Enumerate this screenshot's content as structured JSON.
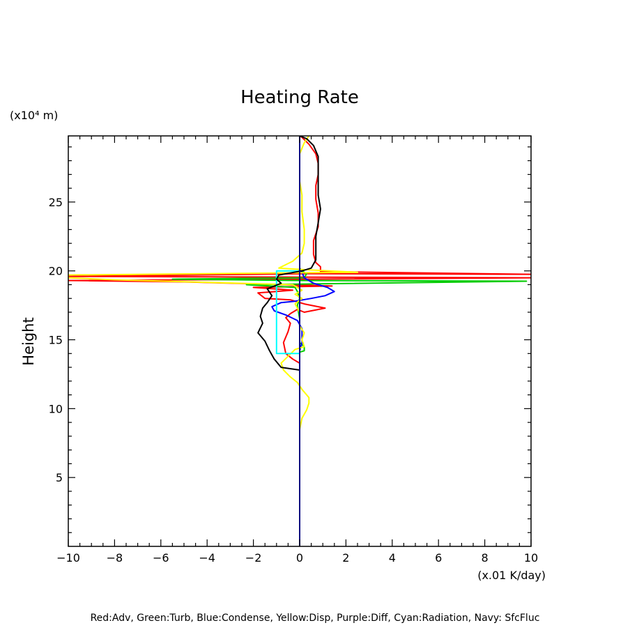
{
  "chart_data": {
    "type": "line",
    "title": "Heating Rate",
    "ylabel": "Height",
    "y_units": "(x10⁴ m)",
    "x_units": "(x.01 K/day)",
    "xlim": [
      -10,
      10
    ],
    "ylim": [
      0,
      29.8
    ],
    "x_ticks": [
      "−10",
      "−8",
      "−6",
      "−4",
      "−2",
      "0",
      "2",
      "4",
      "6",
      "8",
      "10"
    ],
    "y_ticks": [
      "5",
      "10",
      "15",
      "20",
      "25"
    ],
    "legend": "Red:Adv, Green:Turb, Blue:Condense, Yellow:Disp, Purple:Diff, Cyan:Radiation, Navy: SfcFluc",
    "grid": false,
    "series": [
      {
        "name": "Red:Adv",
        "color": "#ff0000",
        "points": [
          [
            0,
            12.8
          ],
          [
            0,
            13.3
          ],
          [
            -0.3,
            13.6
          ],
          [
            -0.6,
            14.0
          ],
          [
            -0.7,
            14.8
          ],
          [
            -0.5,
            15.6
          ],
          [
            -0.4,
            16.2
          ],
          [
            -0.6,
            16.6
          ],
          [
            -0.4,
            16.9
          ],
          [
            -0.1,
            17.2
          ],
          [
            0.2,
            17.0
          ],
          [
            1.1,
            17.3
          ],
          [
            0.2,
            17.6
          ],
          [
            -0.4,
            17.9
          ],
          [
            -1.5,
            18.0
          ],
          [
            -1.8,
            18.4
          ],
          [
            -0.3,
            18.6
          ],
          [
            -2.0,
            18.8
          ],
          [
            1.4,
            18.9
          ],
          [
            -5.0,
            19.2
          ],
          [
            -10,
            19.3
          ],
          [
            10,
            19.5
          ],
          [
            -10,
            19.6
          ],
          [
            0.4,
            19.8
          ],
          [
            10,
            19.75
          ],
          [
            0.9,
            19.95
          ],
          [
            0.9,
            20.3
          ],
          [
            0.7,
            20.6
          ],
          [
            0.6,
            21.2
          ],
          [
            0.6,
            22.2
          ],
          [
            0.8,
            23.2
          ],
          [
            0.8,
            24.2
          ],
          [
            0.7,
            25.2
          ],
          [
            0.7,
            26.2
          ],
          [
            0.8,
            27.0
          ],
          [
            0.8,
            27.8
          ],
          [
            0.7,
            28.5
          ],
          [
            0.4,
            29.2
          ],
          [
            0.1,
            29.7
          ],
          [
            0,
            29.8
          ]
        ]
      },
      {
        "name": "Green:Turb",
        "color": "#00cc00",
        "points": [
          [
            0,
            14.1
          ],
          [
            0.2,
            14.2
          ],
          [
            0.2,
            14.5
          ],
          [
            0,
            14.8
          ],
          [
            0,
            15.6
          ],
          [
            0,
            16.5
          ],
          [
            -0.1,
            17.5
          ],
          [
            0,
            18.0
          ],
          [
            -0.1,
            18.5
          ],
          [
            -0.2,
            18.8
          ],
          [
            -2.3,
            19.0
          ],
          [
            0.3,
            19.05
          ],
          [
            9.8,
            19.25
          ],
          [
            -0.1,
            19.3
          ],
          [
            -5.5,
            19.4
          ],
          [
            0.2,
            19.5
          ],
          [
            0.3,
            19.8
          ],
          [
            0.1,
            20.0
          ],
          [
            0,
            20.2
          ]
        ]
      },
      {
        "name": "Blue:Condense",
        "color": "#0000ff",
        "points": [
          [
            0,
            14.2
          ],
          [
            0.1,
            14.8
          ],
          [
            0.1,
            15.8
          ],
          [
            -0.1,
            16.4
          ],
          [
            -0.6,
            16.8
          ],
          [
            -1.1,
            17.1
          ],
          [
            -1.2,
            17.4
          ],
          [
            -0.8,
            17.7
          ],
          [
            -0.2,
            17.8
          ],
          [
            0.5,
            18.0
          ],
          [
            1.1,
            18.2
          ],
          [
            1.5,
            18.5
          ],
          [
            1.2,
            18.8
          ],
          [
            0.6,
            19.1
          ],
          [
            0.2,
            19.5
          ],
          [
            0.1,
            19.9
          ],
          [
            0,
            20.2
          ]
        ]
      },
      {
        "name": "Yellow:Disp",
        "color": "#ffff00",
        "points": [
          [
            0,
            8.5
          ],
          [
            0.1,
            9.3
          ],
          [
            0.3,
            9.9
          ],
          [
            0.4,
            10.4
          ],
          [
            0.4,
            10.8
          ],
          [
            0.1,
            11.4
          ],
          [
            -0.1,
            11.9
          ],
          [
            -0.4,
            12.3
          ],
          [
            -0.7,
            12.8
          ],
          [
            -0.8,
            13.3
          ],
          [
            -0.5,
            13.8
          ],
          [
            -0.2,
            14.3
          ],
          [
            0.2,
            14.5
          ],
          [
            0.1,
            15.0
          ],
          [
            0.2,
            15.5
          ],
          [
            0,
            16.0
          ],
          [
            0,
            17.0
          ],
          [
            -0.2,
            17.6
          ],
          [
            0.1,
            18.0
          ],
          [
            -0.2,
            18.3
          ],
          [
            0.1,
            18.6
          ],
          [
            -0.3,
            19.0
          ],
          [
            -8.0,
            19.35
          ],
          [
            -10,
            19.5
          ],
          [
            -10,
            19.7
          ],
          [
            -1.0,
            19.85
          ],
          [
            2.5,
            19.9
          ],
          [
            0.1,
            20.1
          ],
          [
            -0.9,
            20.2
          ],
          [
            -0.3,
            20.7
          ],
          [
            0.1,
            21.3
          ],
          [
            0.2,
            22.0
          ],
          [
            0.2,
            23.0
          ],
          [
            0.1,
            24.3
          ],
          [
            0.1,
            25.5
          ],
          [
            0,
            26.5
          ],
          [
            0,
            27.5
          ],
          [
            0,
            28.5
          ],
          [
            0.2,
            29.3
          ],
          [
            0.4,
            29.8
          ]
        ]
      },
      {
        "name": "Cyan:Radiation",
        "color": "#00ffff",
        "points": [
          [
            0,
            14.0
          ],
          [
            -1.0,
            14.0
          ],
          [
            -1.0,
            17.0
          ],
          [
            -1.0,
            20.0
          ],
          [
            0,
            20.0
          ]
        ]
      },
      {
        "name": "Black",
        "color": "#000000",
        "points": [
          [
            0,
            12.8
          ],
          [
            -0.8,
            13.0
          ],
          [
            -1.1,
            13.6
          ],
          [
            -1.3,
            14.2
          ],
          [
            -1.5,
            14.9
          ],
          [
            -1.8,
            15.5
          ],
          [
            -1.6,
            16.2
          ],
          [
            -1.7,
            16.7
          ],
          [
            -1.6,
            17.3
          ],
          [
            -1.4,
            17.7
          ],
          [
            -1.2,
            18.2
          ],
          [
            -1.4,
            18.7
          ],
          [
            -0.8,
            19.1
          ],
          [
            -1.0,
            19.4
          ],
          [
            -0.9,
            19.7
          ],
          [
            0.1,
            20.0
          ],
          [
            0.5,
            20.2
          ],
          [
            0.7,
            20.8
          ],
          [
            0.7,
            21.6
          ],
          [
            0.7,
            22.5
          ],
          [
            0.8,
            23.5
          ],
          [
            0.9,
            24.5
          ],
          [
            0.8,
            25.5
          ],
          [
            0.8,
            26.5
          ],
          [
            0.8,
            27.5
          ],
          [
            0.8,
            28.3
          ],
          [
            0.6,
            29.1
          ],
          [
            0.3,
            29.6
          ],
          [
            0,
            29.8
          ]
        ]
      },
      {
        "name": "Navy: SfcFluc",
        "color": "#000080",
        "points": [
          [
            0,
            0
          ],
          [
            0,
            29.8
          ]
        ]
      }
    ]
  }
}
